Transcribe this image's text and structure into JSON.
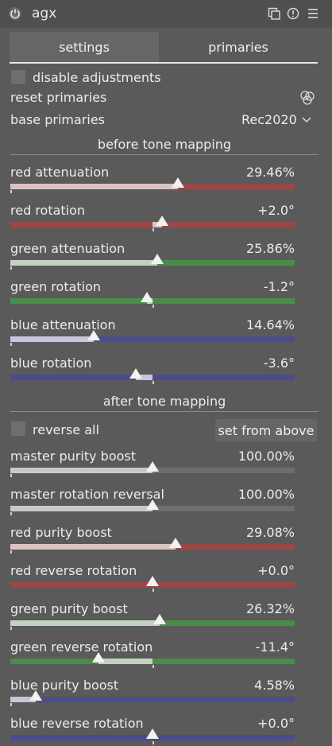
{
  "module": {
    "title": "agx"
  },
  "tabs": [
    "settings",
    "primaries"
  ],
  "controls": {
    "disable_adjustments": "disable adjustments",
    "reset_primaries": "reset primaries",
    "base_primaries_label": "base primaries",
    "base_primaries_value": "Rec2020"
  },
  "sections": {
    "before": "before tone mapping",
    "after": "after tone mapping"
  },
  "before_sliders": [
    {
      "label": "red attenuation",
      "value": "29.46%",
      "level": 0.589
    },
    {
      "label": "red rotation",
      "value": "+2.0°",
      "level": 0.533
    },
    {
      "label": "green attenuation",
      "value": "25.86%",
      "level": 0.517
    },
    {
      "label": "green rotation",
      "value": "-1.2°",
      "level": 0.48
    },
    {
      "label": "blue attenuation",
      "value": "14.64%",
      "level": 0.293
    },
    {
      "label": "blue rotation",
      "value": "-3.6°",
      "level": 0.44
    }
  ],
  "after": {
    "reverse_all": "reverse all",
    "set_from_above": "set from above"
  },
  "after_sliders": [
    {
      "label": "master purity boost",
      "value": "100.00%",
      "level": 0.5
    },
    {
      "label": "master rotation reversal",
      "value": "100.00%",
      "level": 0.5
    },
    {
      "label": "red purity boost",
      "value": "29.08%",
      "level": 0.58
    },
    {
      "label": "red reverse rotation",
      "value": "+0.0°",
      "level": 0.5
    },
    {
      "label": "green purity boost",
      "value": "26.32%",
      "level": 0.525
    },
    {
      "label": "green reverse rotation",
      "value": "-11.4°",
      "level": 0.31
    },
    {
      "label": "blue purity boost",
      "value": "4.58%",
      "level": 0.09
    },
    {
      "label": "blue reverse rotation",
      "value": "+0.0°",
      "level": 0.5
    }
  ],
  "colors": {
    "red_light": "#d9c3c3",
    "red_dark": "#9a4747",
    "green_light": "#c3d3c1",
    "green_dark": "#4a8c49",
    "blue_light": "#c5c5dc",
    "blue_dark": "#4b4b8f",
    "neutral": "#c9c9c9",
    "neutral_dark": "#6e6e6e"
  },
  "icons": [
    "power-icon",
    "presets-icon",
    "reset-icon",
    "menu-icon",
    "color-circles-icon",
    "chevron-down-icon"
  ]
}
